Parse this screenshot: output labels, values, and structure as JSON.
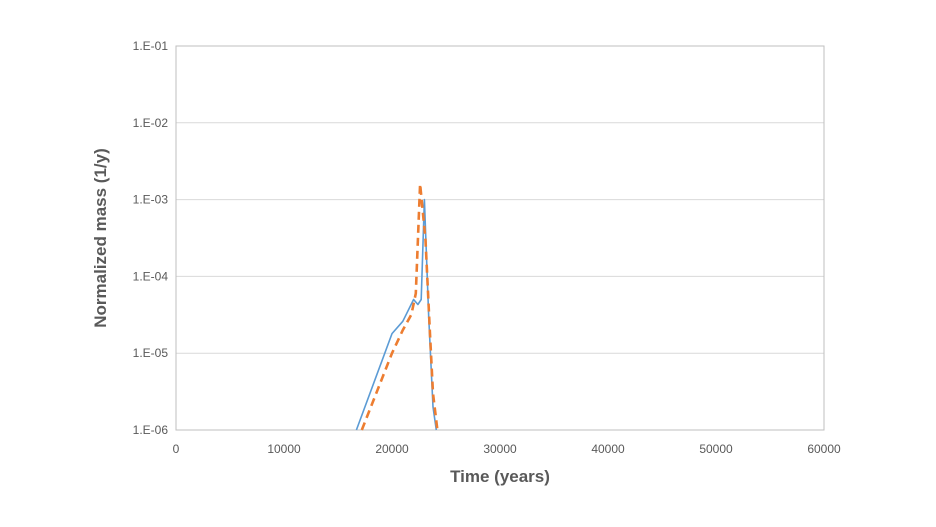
{
  "chart_data": {
    "type": "line",
    "xlabel": "Time (years)",
    "ylabel": "Normalized mass (1/y)",
    "xlim": [
      0,
      60000
    ],
    "ylim": [
      1e-06,
      0.1
    ],
    "y_scale": "log",
    "grid": "horizontal",
    "legend": "none",
    "x_ticks": [
      "0",
      "10000",
      "20000",
      "30000",
      "40000",
      "50000",
      "60000"
    ],
    "y_ticks": [
      "1.E-06",
      "1.E-05",
      "1.E-04",
      "1.E-03",
      "1.E-02",
      "1.E-01"
    ],
    "series": [
      {
        "style": "solid",
        "color": "#5B9BD5",
        "points": [
          [
            16700,
            1e-06
          ],
          [
            20000,
            1.8e-05
          ],
          [
            21000,
            2.6e-05
          ],
          [
            22000,
            5e-05
          ],
          [
            22400,
            4.3e-05
          ],
          [
            22700,
            5e-05
          ],
          [
            23000,
            0.001
          ],
          [
            23400,
            3e-05
          ],
          [
            23800,
            2e-06
          ],
          [
            24100,
            1e-06
          ]
        ]
      },
      {
        "style": "dashed",
        "color": "#ED7D31",
        "points": [
          [
            17200,
            1e-06
          ],
          [
            20000,
            1e-05
          ],
          [
            21000,
            2e-05
          ],
          [
            21800,
            3.2e-05
          ],
          [
            22200,
            6e-05
          ],
          [
            22600,
            0.0016
          ],
          [
            23100,
            0.0003
          ],
          [
            23500,
            2e-05
          ],
          [
            23800,
            3e-06
          ],
          [
            24200,
            1e-06
          ]
        ]
      }
    ]
  }
}
